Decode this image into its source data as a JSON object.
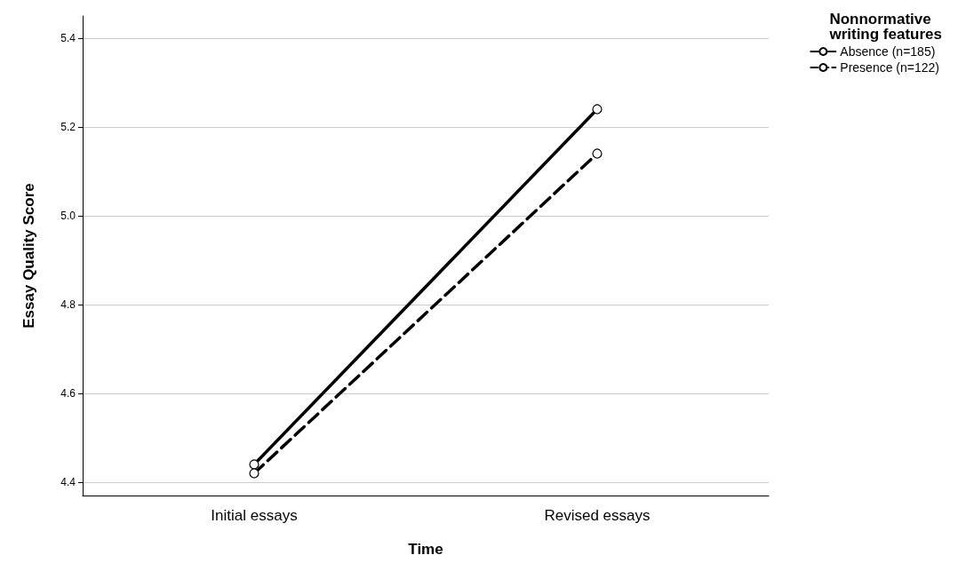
{
  "chart_data": {
    "type": "line",
    "xlabel": "Time",
    "ylabel": "Essay Quality Score",
    "legend_title": "Nonnormative\nwriting features",
    "categories": [
      "Initial essays",
      "Revised essays"
    ],
    "series": [
      {
        "name": "Absence (n=185)",
        "color": "#000000",
        "line_style": "solid",
        "values": [
          4.44,
          5.24
        ]
      },
      {
        "name": "Presence (n=122)",
        "color": "#000000",
        "line_style": "dashed",
        "values": [
          4.42,
          5.14
        ]
      }
    ],
    "ylim": [
      4.37,
      5.45
    ],
    "yticks": [
      4.4,
      4.6,
      4.8,
      {
        "value": 5,
        "label": "5.0"
      },
      5.2,
      5.4
    ],
    "grid": "y",
    "legend": "top right",
    "marker": "circle"
  }
}
